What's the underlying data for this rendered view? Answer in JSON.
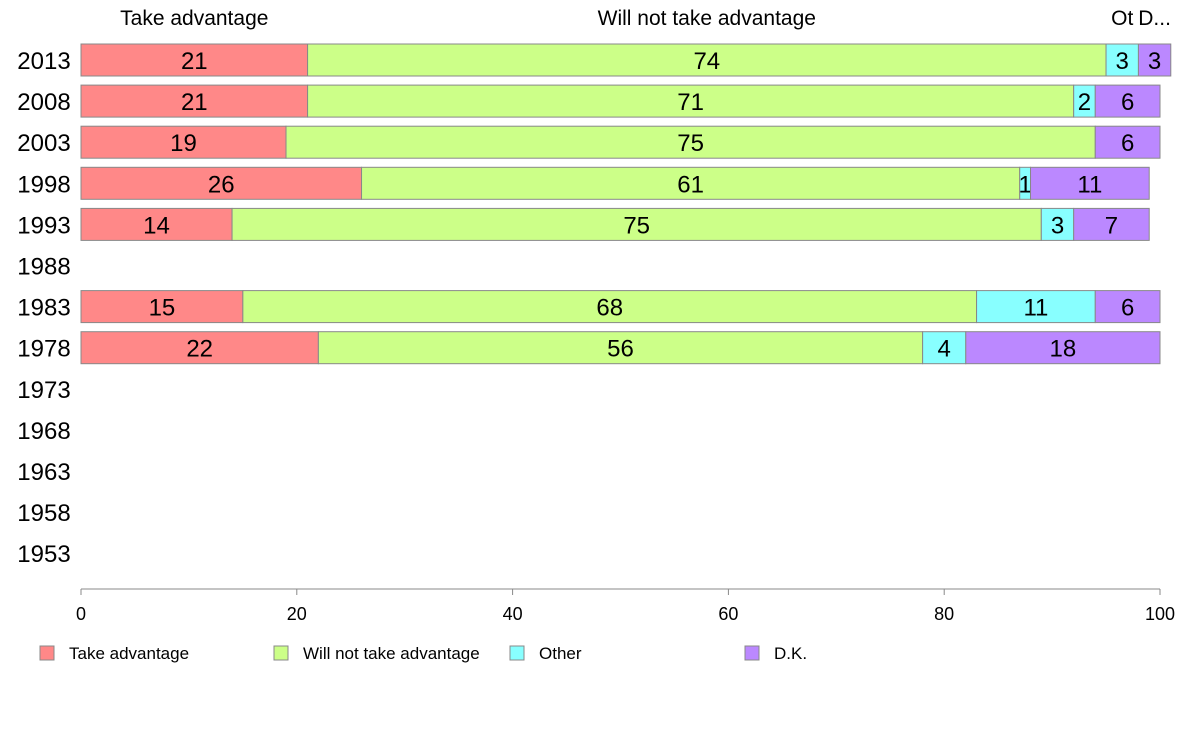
{
  "chart_data": {
    "type": "bar",
    "orientation": "horizontal",
    "stacked": true,
    "categories": [
      "2013",
      "2008",
      "2003",
      "1998",
      "1993",
      "1988",
      "1983",
      "1978",
      "1973",
      "1968",
      "1963",
      "1958",
      "1953"
    ],
    "series": [
      {
        "name": "Take advantage",
        "header": "Take advantage",
        "color": "#ff8888",
        "values": [
          21,
          21,
          19,
          26,
          14,
          null,
          15,
          22,
          null,
          null,
          null,
          null,
          null
        ]
      },
      {
        "name": "Will not take advantage",
        "header": "Will not take advantage",
        "color": "#ccff88",
        "values": [
          74,
          71,
          75,
          61,
          75,
          null,
          68,
          56,
          null,
          null,
          null,
          null,
          null
        ]
      },
      {
        "name": "Other",
        "header": "Ot",
        "color": "#88ffff",
        "values": [
          3,
          2,
          0,
          1,
          3,
          null,
          11,
          4,
          null,
          null,
          null,
          null,
          null
        ]
      },
      {
        "name": "D.K.",
        "header": "D...",
        "color": "#bb88ff",
        "values": [
          3,
          6,
          6,
          11,
          7,
          null,
          6,
          18,
          null,
          null,
          null,
          null,
          null
        ]
      }
    ],
    "xlim": [
      0,
      100
    ],
    "xticks": [
      "0",
      "20",
      "40",
      "60",
      "80",
      "100"
    ],
    "grid": false,
    "legend_position": "bottom"
  }
}
